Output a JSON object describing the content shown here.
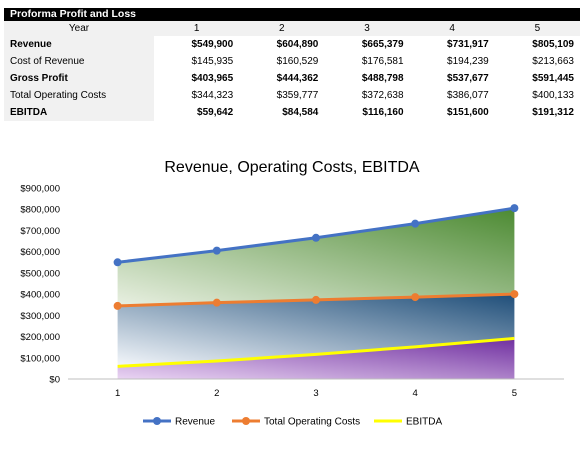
{
  "table": {
    "title": "Proforma Profit and Loss",
    "year_label": "Year",
    "years": [
      "1",
      "2",
      "3",
      "4",
      "5"
    ],
    "rows": [
      {
        "label": "Revenue",
        "bold": true,
        "values": [
          "$549,900",
          "$604,890",
          "$665,379",
          "$731,917",
          "$805,109"
        ]
      },
      {
        "label": "Cost of Revenue",
        "bold": false,
        "values": [
          "$145,935",
          "$160,529",
          "$176,581",
          "$194,239",
          "$213,663"
        ]
      },
      {
        "label": "Gross Profit",
        "bold": true,
        "values": [
          "$403,965",
          "$444,362",
          "$488,798",
          "$537,677",
          "$591,445"
        ]
      },
      {
        "label": "Total Operating Costs",
        "bold": false,
        "values": [
          "$344,323",
          "$359,777",
          "$372,638",
          "$386,077",
          "$400,133"
        ]
      },
      {
        "label": "EBITDA",
        "bold": true,
        "values": [
          "$59,642",
          "$84,584",
          "$116,160",
          "$151,600",
          "$191,312"
        ]
      }
    ]
  },
  "chart_data": {
    "type": "line",
    "title": "Revenue, Operating Costs, EBITDA",
    "x": [
      1,
      2,
      3,
      4,
      5
    ],
    "x_tick_labels": [
      "1",
      "2",
      "3",
      "4",
      "5"
    ],
    "ylim": [
      0,
      900000
    ],
    "y_ticks": [
      0,
      100000,
      200000,
      300000,
      400000,
      500000,
      600000,
      700000,
      800000,
      900000
    ],
    "y_tick_labels": [
      "$0",
      "$100,000",
      "$200,000",
      "$300,000",
      "$400,000",
      "$500,000",
      "$600,000",
      "$700,000",
      "$800,000",
      "$900,000"
    ],
    "grid": false,
    "legend_position": "bottom",
    "series": [
      {
        "name": "Revenue",
        "values": [
          549900,
          604890,
          665379,
          731917,
          805109
        ],
        "color": "#4472c4",
        "markers": true
      },
      {
        "name": "Total Operating Costs",
        "values": [
          344323,
          359777,
          372638,
          386077,
          400133
        ],
        "color": "#ed7d31",
        "markers": true
      },
      {
        "name": "EBITDA",
        "values": [
          59642,
          84584,
          116160,
          151600,
          191312
        ],
        "color": "#ffff00",
        "markers": false
      }
    ],
    "area_fills": {
      "upper": {
        "light": "#e9f0e2",
        "dark": "#4c8a32"
      },
      "middle": {
        "light": "#f4f7fb",
        "dark": "#1f4e79"
      },
      "lower": {
        "light": "#ead5f3",
        "dark": "#7030a0"
      }
    }
  }
}
